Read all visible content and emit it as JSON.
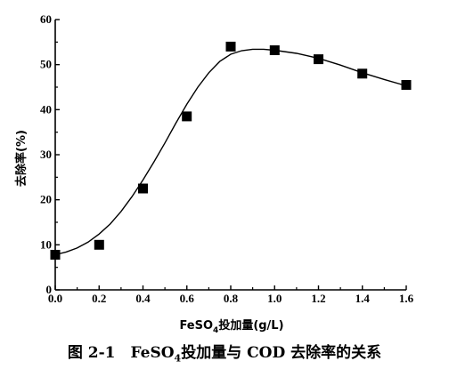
{
  "chart_data": {
    "type": "scatter",
    "x": [
      0.0,
      0.2,
      0.4,
      0.6,
      0.8,
      1.0,
      1.2,
      1.4,
      1.6
    ],
    "y": [
      7.8,
      10.0,
      22.5,
      38.5,
      54.0,
      53.2,
      51.2,
      48.0,
      45.5
    ],
    "fit_curve": {
      "x": [
        0.0,
        0.05,
        0.1,
        0.15,
        0.2,
        0.25,
        0.3,
        0.35,
        0.4,
        0.45,
        0.5,
        0.55,
        0.6,
        0.65,
        0.7,
        0.75,
        0.8,
        0.85,
        0.9,
        0.95,
        1.0,
        1.1,
        1.2,
        1.3,
        1.4,
        1.5,
        1.6
      ],
      "y": [
        7.8,
        8.4,
        9.3,
        10.6,
        12.4,
        14.6,
        17.4,
        20.7,
        24.4,
        28.4,
        32.6,
        37.0,
        41.2,
        45.0,
        48.2,
        50.7,
        52.3,
        53.1,
        53.4,
        53.4,
        53.2,
        52.5,
        51.4,
        49.9,
        48.2,
        46.7,
        45.3
      ]
    },
    "xlim": [
      0.0,
      1.6
    ],
    "ylim": [
      0,
      60
    ],
    "x_ticks": [
      "0.0",
      "0.2",
      "0.4",
      "0.6",
      "0.8",
      "1.0",
      "1.2",
      "1.4",
      "1.6"
    ],
    "y_ticks": [
      "0",
      "10",
      "20",
      "30",
      "40",
      "50",
      "60"
    ],
    "xlabel_main": "FeSO",
    "xlabel_sub": "4",
    "xlabel_rest": "投加量(g/L)",
    "ylabel": "去除率(%)",
    "grid": false,
    "marker_color": "#000000"
  },
  "caption": {
    "prefix": "图 2-1　FeSO",
    "sub": "4",
    "rest": "投加量与 COD 去除率的关系"
  }
}
